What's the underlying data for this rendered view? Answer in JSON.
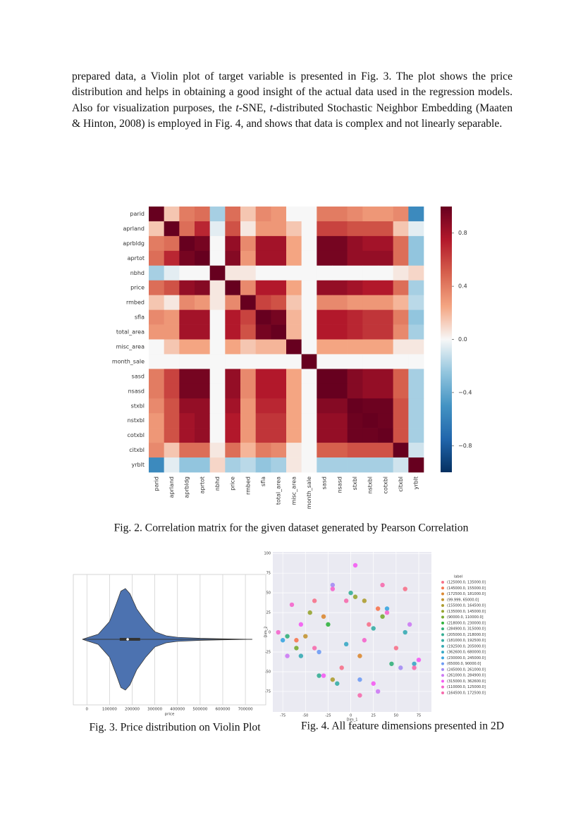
{
  "paragraph": [
    {
      "text": "prepared data, a Violin plot of target variable is presented in Fig. 3. The plot shows the price distribution and helps in obtaining a good insight of the actual data used in the regression models. Also for visualization purposes, the "
    },
    {
      "text": "t",
      "italic": true
    },
    {
      "text": "-SNE, "
    },
    {
      "text": "t",
      "italic": true
    },
    {
      "text": "-distributed Stochastic Neighbor Embedding (Maaten & Hinton, 2008) is employed in Fig. 4, and shows that data is complex and not linearly separable."
    }
  ],
  "chart_data": [
    {
      "type": "heatmap",
      "categories": [
        "parid",
        "aprland",
        "aprbldg",
        "aprtot",
        "nbhd",
        "price",
        "rmbed",
        "sfla",
        "total_area",
        "misc_area",
        "month_sale",
        "sasd",
        "nsasd",
        "stxbl",
        "nstxbl",
        "cotxbl",
        "citxbl",
        "yrblt"
      ],
      "values": [
        [
          1,
          0.15,
          0.4,
          0.45,
          -0.2,
          0.45,
          0.15,
          0.35,
          0.3,
          0.0,
          0.0,
          0.4,
          0.4,
          0.35,
          0.3,
          0.3,
          0.35,
          -0.55
        ],
        [
          0.15,
          1,
          0.45,
          0.7,
          -0.05,
          0.55,
          0.05,
          0.3,
          0.3,
          0.15,
          0.0,
          0.6,
          0.6,
          0.55,
          0.55,
          0.55,
          0.15,
          -0.05
        ],
        [
          0.4,
          0.45,
          1,
          0.95,
          0.0,
          0.85,
          0.35,
          0.8,
          0.8,
          0.25,
          0.0,
          0.95,
          0.95,
          0.85,
          0.8,
          0.8,
          0.45,
          -0.25
        ],
        [
          0.45,
          0.7,
          0.95,
          1,
          0.0,
          0.9,
          0.3,
          0.8,
          0.8,
          0.25,
          0.0,
          0.95,
          0.95,
          0.85,
          0.85,
          0.85,
          0.45,
          -0.25
        ],
        [
          -0.2,
          -0.05,
          0.0,
          0.0,
          1,
          0.05,
          0.05,
          0.0,
          0.0,
          0.0,
          0.0,
          0.0,
          0.0,
          0.0,
          0.0,
          0.0,
          0.05,
          0.1
        ],
        [
          0.45,
          0.55,
          0.85,
          0.9,
          0.05,
          1,
          0.35,
          0.75,
          0.75,
          0.25,
          0.0,
          0.85,
          0.85,
          0.8,
          0.75,
          0.75,
          0.45,
          -0.2
        ],
        [
          0.15,
          0.05,
          0.35,
          0.3,
          0.05,
          0.35,
          1,
          0.6,
          0.55,
          0.15,
          0.0,
          0.35,
          0.35,
          0.3,
          0.3,
          0.3,
          0.2,
          -0.15
        ],
        [
          0.35,
          0.3,
          0.8,
          0.8,
          0.0,
          0.75,
          0.6,
          1,
          0.95,
          0.2,
          0.0,
          0.75,
          0.75,
          0.7,
          0.65,
          0.65,
          0.4,
          -0.25
        ],
        [
          0.3,
          0.3,
          0.8,
          0.8,
          0.0,
          0.75,
          0.55,
          0.95,
          1,
          0.2,
          0.0,
          0.75,
          0.75,
          0.7,
          0.65,
          0.65,
          0.35,
          -0.2
        ],
        [
          0.0,
          0.15,
          0.25,
          0.25,
          0.0,
          0.25,
          0.15,
          0.2,
          0.2,
          1,
          0.0,
          0.25,
          0.25,
          0.25,
          0.25,
          0.25,
          0.05,
          0.05
        ],
        [
          0.0,
          0.0,
          0.0,
          0.0,
          0.0,
          0.0,
          0.0,
          0.0,
          0.0,
          0.0,
          1,
          0.0,
          0.0,
          0.0,
          0.0,
          0.0,
          0.0,
          0.0
        ],
        [
          0.4,
          0.6,
          0.95,
          0.95,
          0.0,
          0.85,
          0.35,
          0.75,
          0.75,
          0.25,
          0.0,
          1,
          1,
          0.9,
          0.85,
          0.85,
          0.5,
          -0.2
        ],
        [
          0.4,
          0.6,
          0.95,
          0.95,
          0.0,
          0.85,
          0.35,
          0.75,
          0.75,
          0.25,
          0.0,
          1,
          1,
          0.9,
          0.85,
          0.85,
          0.5,
          -0.2
        ],
        [
          0.35,
          0.55,
          0.85,
          0.85,
          0.0,
          0.8,
          0.3,
          0.7,
          0.7,
          0.25,
          0.0,
          0.9,
          0.9,
          1,
          0.98,
          0.98,
          0.55,
          -0.2
        ],
        [
          0.3,
          0.55,
          0.8,
          0.85,
          0.0,
          0.75,
          0.3,
          0.65,
          0.65,
          0.25,
          0.0,
          0.85,
          0.85,
          0.98,
          1,
          0.98,
          0.55,
          -0.2
        ],
        [
          0.3,
          0.55,
          0.8,
          0.85,
          0.0,
          0.75,
          0.3,
          0.65,
          0.65,
          0.25,
          0.0,
          0.85,
          0.85,
          0.98,
          0.98,
          1,
          0.55,
          -0.2
        ],
        [
          0.35,
          0.15,
          0.45,
          0.45,
          0.05,
          0.45,
          0.2,
          0.4,
          0.35,
          0.05,
          0.0,
          0.5,
          0.5,
          0.55,
          0.55,
          0.55,
          1,
          -0.1
        ],
        [
          -0.55,
          -0.05,
          -0.25,
          -0.25,
          0.1,
          -0.2,
          -0.15,
          -0.25,
          -0.2,
          0.05,
          0.0,
          -0.2,
          -0.2,
          -0.2,
          -0.2,
          -0.2,
          -0.1,
          1
        ]
      ],
      "vlim": [
        -1,
        1
      ],
      "colorscale": [
        "#053061",
        "#2166ac",
        "#4393c3",
        "#92c5de",
        "#f7f7f7",
        "#f4a582",
        "#d6604d",
        "#b2182b",
        "#67001f"
      ],
      "colorbar_ticks": [
        0.8,
        0.4,
        {
          "value": 0,
          "label": "0.0"
        },
        {
          "value": -0.4,
          "label": "−0.4"
        },
        {
          "value": -0.8,
          "label": "−0.8"
        }
      ]
    },
    {
      "type": "violin",
      "xlabel": "price",
      "color": "#4c72b0",
      "xlim": [
        -60000,
        790000
      ],
      "xticks": [
        0,
        100000,
        200000,
        300000,
        400000,
        500000,
        600000,
        700000
      ],
      "density": {
        "x": [
          -20000,
          0,
          50000,
          100000,
          130000,
          150000,
          170000,
          190000,
          220000,
          260000,
          300000,
          350000,
          400000,
          500000,
          600000,
          730000
        ],
        "width": [
          0,
          0.03,
          0.1,
          0.35,
          0.7,
          0.95,
          1,
          0.9,
          0.6,
          0.35,
          0.15,
          0.07,
          0.04,
          0.02,
          0.01,
          0
        ]
      },
      "box": {
        "whislo": 5000,
        "q1": 145000,
        "med": 180000,
        "q3": 235000,
        "whishi": 730000
      }
    },
    {
      "type": "scatter",
      "xlabel": "Dim_1",
      "ylabel": "Dim_2",
      "legend_title": "label",
      "xlim": [
        -86,
        89
      ],
      "ylim": [
        -101,
        102
      ],
      "xticks": [
        -75,
        -50,
        -25,
        0,
        25,
        50,
        75
      ],
      "yticks": [
        -75,
        -50,
        -25,
        0,
        25,
        50,
        75,
        100
      ],
      "series": [
        {
          "name": "(125000.0, 135000.0]",
          "color": "#f77189",
          "x": [
            -40,
            20,
            50,
            60,
            -10
          ],
          "y": [
            40,
            10,
            -20,
            55,
            -45
          ]
        },
        {
          "name": "(145000.0, 155000.0]",
          "color": "#f7754f",
          "x": [
            30,
            -60
          ],
          "y": [
            30,
            -10
          ]
        },
        {
          "name": "(172500.0, 181000.0]",
          "color": "#dc8932",
          "x": [
            -30,
            10
          ],
          "y": [
            20,
            -30
          ]
        },
        {
          "name": "(99.999, 65000.0]",
          "color": "#c39532",
          "x": [
            -50
          ],
          "y": [
            -5
          ]
        },
        {
          "name": "(155000.0, 164500.0]",
          "color": "#ae9d31",
          "x": [
            15,
            -20
          ],
          "y": [
            40,
            -60
          ]
        },
        {
          "name": "(135000.0, 145000.0]",
          "color": "#97a431",
          "x": [
            -45,
            5
          ],
          "y": [
            25,
            45
          ]
        },
        {
          "name": "(90000.0, 110000.0]",
          "color": "#77ab31",
          "x": [
            -60,
            35
          ],
          "y": [
            -20,
            20
          ]
        },
        {
          "name": "(218000.0, 230000.0]",
          "color": "#31b33e",
          "x": [
            -25
          ],
          "y": [
            10
          ]
        },
        {
          "name": "(284900.0, 315000.0]",
          "color": "#33b07a",
          "x": [
            45,
            -70
          ],
          "y": [
            -40,
            -5
          ]
        },
        {
          "name": "(205000.0, 218000.0]",
          "color": "#35ae93",
          "x": [
            0,
            -35
          ],
          "y": [
            50,
            -55
          ]
        },
        {
          "name": "(181000.0, 192500.0]",
          "color": "#36ada4",
          "x": [
            -15,
            25
          ],
          "y": [
            -65,
            5
          ]
        },
        {
          "name": "(192500.0, 205000.0]",
          "color": "#37abb4",
          "x": [
            60,
            -55
          ],
          "y": [
            0,
            -30
          ]
        },
        {
          "name": "(362600.0, 680000.0]",
          "color": "#38a9c5",
          "x": [
            -5,
            70
          ],
          "y": [
            -15,
            -40
          ]
        },
        {
          "name": "(230000.0, 245000.0]",
          "color": "#3aa5df",
          "x": [
            -75,
            40
          ],
          "y": [
            -10,
            30
          ]
        },
        {
          "name": "(65000.0, 90000.0]",
          "color": "#6e9bf4",
          "x": [
            -35,
            10
          ],
          "y": [
            -25,
            -60
          ]
        },
        {
          "name": "(245000.0, 261000.0]",
          "color": "#a48cf4",
          "x": [
            55,
            -20
          ],
          "y": [
            -45,
            60
          ]
        },
        {
          "name": "(261000.0, 284900.0]",
          "color": "#cc7af4",
          "x": [
            -70,
            30,
            65
          ],
          "y": [
            -30,
            -75,
            10
          ]
        },
        {
          "name": "(315000.0, 362600.0]",
          "color": "#f45cf2",
          "x": [
            -55,
            -30,
            25,
            5,
            75
          ],
          "y": [
            10,
            -55,
            -65,
            85,
            -35
          ]
        },
        {
          "name": "(110000.0, 125000.0]",
          "color": "#f565cc",
          "x": [
            -20,
            40,
            -65,
            15,
            -80
          ],
          "y": [
            55,
            25,
            35,
            -10,
            0
          ]
        },
        {
          "name": "(164500.0, 172500.0]",
          "color": "#f66bad",
          "x": [
            -40,
            -5,
            35,
            70,
            10
          ],
          "y": [
            -20,
            40,
            60,
            -45,
            -80
          ]
        }
      ]
    }
  ],
  "captions": [
    "Fig. 2. Correlation matrix for the given dataset generated by Pearson Correlation",
    "Fig. 3. Price distribution on Violin Plot",
    "Fig. 4. All feature dimensions presented in 2D"
  ]
}
